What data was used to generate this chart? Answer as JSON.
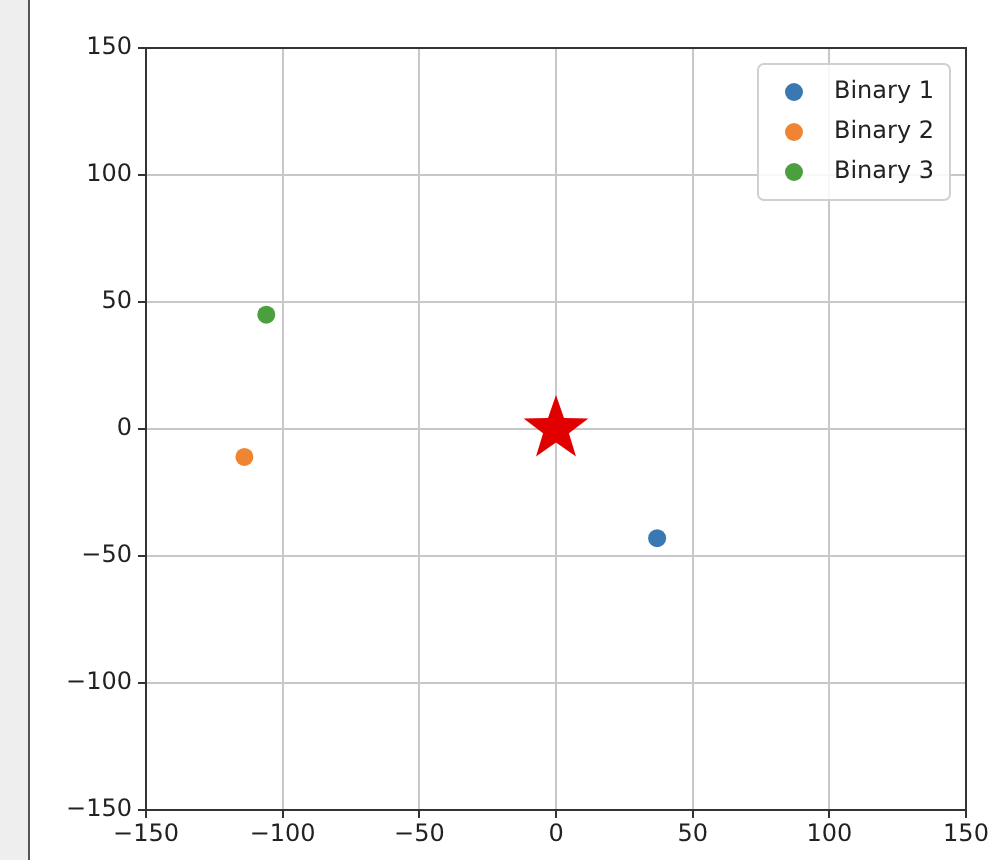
{
  "chart_data": {
    "type": "scatter",
    "xlim": [
      -150,
      150
    ],
    "xticks": [
      -150,
      -100,
      -50,
      0,
      50,
      100,
      150
    ],
    "ylim": [
      -150,
      150
    ],
    "yticks": [
      -150,
      -100,
      -50,
      0,
      50,
      100,
      150
    ],
    "grid": true,
    "legend": "top right",
    "series": [
      {
        "name": "Binary 1",
        "color": "#3a78b4",
        "x": [
          37
        ],
        "values": [
          -43
        ],
        "marker": "circle"
      },
      {
        "name": "Binary 2",
        "color": "#ef8533",
        "x": [
          -114
        ],
        "values": [
          -11
        ],
        "marker": "circle"
      },
      {
        "name": "Binary 3",
        "color": "#4b9f3e",
        "x": [
          -106
        ],
        "values": [
          45
        ],
        "marker": "circle"
      },
      {
        "color": "#e00000",
        "x": [
          0
        ],
        "values": [
          0
        ],
        "marker": "star"
      }
    ]
  }
}
